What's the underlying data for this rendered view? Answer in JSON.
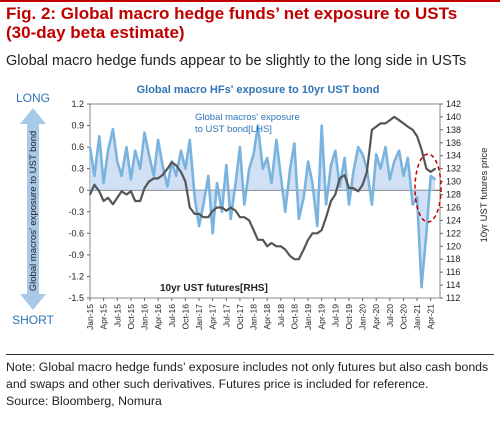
{
  "header": {
    "title": "Fig. 2: Global macro hedge funds’ net exposure to USTs (30-day beta estimate)",
    "subtitle": "Global macro hedge funds appear to be slightly to the long side in USTs"
  },
  "footer": {
    "note": "Note: Global macro hedge funds’ exposure includes not only futures but also cash bonds and swaps and other such derivatives. Futures price is included for reference.",
    "source": "Source: Bloomberg, Nomura"
  },
  "colors": {
    "title": "#c00000",
    "exposure_line": "#7ab4de",
    "exposure_fill": "#c5d8f1",
    "futures_line": "#555555",
    "arrow": "#a9c9e8",
    "chart_title": "#2e75b6",
    "ellipse": "#c00000"
  },
  "chart_data": {
    "type": "line",
    "title": "Global macro HFs' exposure to 10yr UST bond",
    "x_tick_labels": [
      "Jan-15",
      "Apr-15",
      "Jul-15",
      "Oct-15",
      "Jan-16",
      "Apr-16",
      "Jul-16",
      "Oct-16",
      "Jan-17",
      "Apr-17",
      "Jul-17",
      "Oct-17",
      "Jan-18",
      "Apr-18",
      "Jul-18",
      "Oct-18",
      "Jan-19",
      "Apr-19",
      "Jul-19",
      "Oct-19",
      "Jan-20",
      "Apr-20",
      "Jul-20",
      "Oct-20",
      "Jan-21",
      "Apr-21"
    ],
    "y_left": {
      "ticks": [
        "1.2",
        "0.9",
        "0.6",
        "0.3",
        "0",
        "-0.3",
        "-0.6",
        "-0.9",
        "-1.2",
        "-1.5"
      ],
      "ylim": [
        -1.5,
        1.2
      ]
    },
    "y_right": {
      "label": "10yr UST futures price",
      "ticks": [
        "142",
        "140",
        "138",
        "136",
        "134",
        "132",
        "130",
        "128",
        "126",
        "124",
        "122",
        "120",
        "118",
        "116",
        "114",
        "112"
      ],
      "ylim": [
        112,
        142
      ]
    },
    "left_axis_label": "Global macros' exposure to UST bond",
    "long_label": "LONG",
    "short_label": "SHORT",
    "series": [
      {
        "name": "Global macros' exposure to UST bond[LHS]",
        "axis": "left",
        "style": "area",
        "x": [
          2015.0,
          2015.08,
          2015.17,
          2015.25,
          2015.33,
          2015.42,
          2015.5,
          2015.58,
          2015.67,
          2015.75,
          2015.83,
          2015.92,
          2016.0,
          2016.08,
          2016.17,
          2016.25,
          2016.33,
          2016.42,
          2016.5,
          2016.58,
          2016.67,
          2016.75,
          2016.83,
          2016.92,
          2017.0,
          2017.08,
          2017.17,
          2017.25,
          2017.33,
          2017.42,
          2017.5,
          2017.58,
          2017.67,
          2017.75,
          2017.83,
          2017.92,
          2018.0,
          2018.08,
          2018.17,
          2018.25,
          2018.33,
          2018.42,
          2018.5,
          2018.58,
          2018.67,
          2018.75,
          2018.83,
          2018.92,
          2019.0,
          2019.08,
          2019.17,
          2019.25,
          2019.33,
          2019.42,
          2019.5,
          2019.58,
          2019.67,
          2019.75,
          2019.83,
          2019.92,
          2020.0,
          2020.08,
          2020.17,
          2020.25,
          2020.33,
          2020.42,
          2020.5,
          2020.58,
          2020.67,
          2020.75,
          2020.83,
          2020.92,
          2021.0,
          2021.08,
          2021.17,
          2021.25,
          2021.33
        ],
        "values": [
          0.6,
          0.2,
          0.75,
          0.1,
          0.55,
          0.85,
          0.4,
          0.2,
          0.6,
          0.15,
          0.55,
          0.3,
          0.8,
          0.5,
          0.2,
          0.7,
          0.35,
          0.05,
          0.4,
          0.2,
          0.55,
          0.3,
          0.7,
          -0.1,
          -0.5,
          -0.2,
          0.2,
          -0.6,
          0.1,
          -0.3,
          0.35,
          -0.4,
          0.1,
          0.6,
          -0.2,
          0.3,
          0.5,
          0.9,
          0.3,
          0.45,
          0.1,
          0.7,
          0.2,
          -0.3,
          0.3,
          0.65,
          -0.4,
          -0.1,
          0.4,
          0.1,
          -0.5,
          0.9,
          -0.2,
          0.35,
          0.55,
          0.05,
          0.45,
          -0.2,
          0.25,
          0.6,
          0.5,
          0.3,
          -0.2,
          0.5,
          0.3,
          0.6,
          0.15,
          0.4,
          0.55,
          0.2,
          0.45,
          -0.2,
          -0.1,
          -1.35,
          -0.6,
          0.2,
          0.15
        ]
      },
      {
        "name": "10yr UST futures[RHS]",
        "axis": "right",
        "style": "line",
        "x": [
          2015.0,
          2015.08,
          2015.17,
          2015.25,
          2015.33,
          2015.42,
          2015.5,
          2015.58,
          2015.67,
          2015.75,
          2015.83,
          2015.92,
          2016.0,
          2016.08,
          2016.17,
          2016.25,
          2016.33,
          2016.42,
          2016.5,
          2016.58,
          2016.67,
          2016.75,
          2016.83,
          2016.92,
          2017.0,
          2017.08,
          2017.17,
          2017.25,
          2017.33,
          2017.42,
          2017.5,
          2017.58,
          2017.67,
          2017.75,
          2017.83,
          2017.92,
          2018.0,
          2018.08,
          2018.17,
          2018.25,
          2018.33,
          2018.42,
          2018.5,
          2018.58,
          2018.67,
          2018.75,
          2018.83,
          2018.92,
          2019.0,
          2019.08,
          2019.17,
          2019.25,
          2019.33,
          2019.42,
          2019.5,
          2019.58,
          2019.67,
          2019.75,
          2019.83,
          2019.92,
          2020.0,
          2020.08,
          2020.17,
          2020.25,
          2020.33,
          2020.42,
          2020.5,
          2020.58,
          2020.67,
          2020.75,
          2020.83,
          2020.92,
          2021.0,
          2021.08,
          2021.17,
          2021.25,
          2021.33
        ],
        "values": [
          128,
          129.5,
          128.5,
          127,
          127.5,
          126.5,
          127.5,
          128.5,
          128,
          128.5,
          127,
          127,
          129,
          130,
          130.5,
          130.5,
          131,
          132,
          133,
          132.5,
          131.5,
          130,
          126,
          125,
          125,
          124.5,
          124.5,
          125.5,
          126,
          126,
          125.5,
          126,
          125.5,
          124.5,
          124.5,
          124,
          122.5,
          121,
          121,
          120,
          120.5,
          120,
          120,
          119.5,
          118.5,
          118,
          118,
          119.5,
          121,
          122,
          122,
          122.5,
          124.5,
          127,
          128,
          130.5,
          131,
          129,
          129,
          128.5,
          129.5,
          131.5,
          138,
          138.5,
          139,
          139,
          139.5,
          140,
          139.5,
          139,
          138.5,
          138,
          137,
          135,
          132,
          131.5,
          132
        ]
      }
    ]
  }
}
